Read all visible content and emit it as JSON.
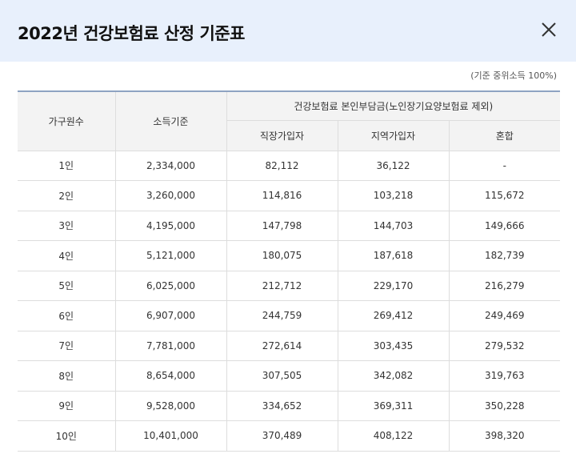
{
  "header": {
    "title": "2022년 건강보험료 산정 기준표",
    "close_icon": "close-icon"
  },
  "note": "(기준 중위소득 100%)",
  "table": {
    "headers": {
      "household": "가구원수",
      "income": "소득기준",
      "premium_group": "건강보험료 본인부담금(노인장기요양보험료 제외)",
      "employee": "직장가입자",
      "regional": "지역가입자",
      "mixed": "혼합"
    },
    "rows": [
      {
        "household": "1인",
        "income": "2,334,000",
        "employee": "82,112",
        "regional": "36,122",
        "mixed": "-"
      },
      {
        "household": "2인",
        "income": "3,260,000",
        "employee": "114,816",
        "regional": "103,218",
        "mixed": "115,672"
      },
      {
        "household": "3인",
        "income": "4,195,000",
        "employee": "147,798",
        "regional": "144,703",
        "mixed": "149,666"
      },
      {
        "household": "4인",
        "income": "5,121,000",
        "employee": "180,075",
        "regional": "187,618",
        "mixed": "182,739"
      },
      {
        "household": "5인",
        "income": "6,025,000",
        "employee": "212,712",
        "regional": "229,170",
        "mixed": "216,279"
      },
      {
        "household": "6인",
        "income": "6,907,000",
        "employee": "244,759",
        "regional": "269,412",
        "mixed": "249,469"
      },
      {
        "household": "7인",
        "income": "7,781,000",
        "employee": "272,614",
        "regional": "303,435",
        "mixed": "279,532"
      },
      {
        "household": "8인",
        "income": "8,654,000",
        "employee": "307,505",
        "regional": "342,082",
        "mixed": "319,763"
      },
      {
        "household": "9인",
        "income": "9,528,000",
        "employee": "334,652",
        "regional": "369,311",
        "mixed": "350,228"
      },
      {
        "household": "10인",
        "income": "10,401,000",
        "employee": "370,489",
        "regional": "408,122",
        "mixed": "398,320"
      }
    ]
  },
  "colors": {
    "header_bg": "#e8f0fc",
    "table_header_bg": "#f3f3f3",
    "table_top_border": "#8ea3c2"
  }
}
